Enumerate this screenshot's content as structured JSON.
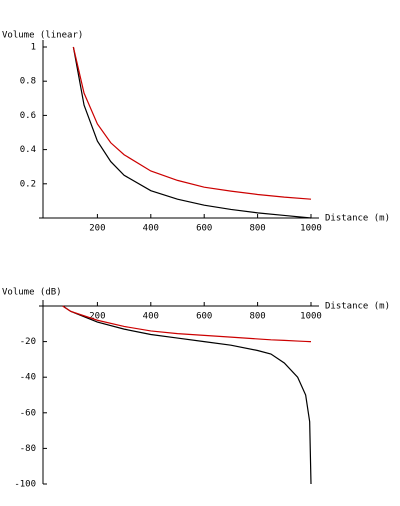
{
  "chart_data": [
    {
      "type": "line",
      "y_label": "Volume (linear)",
      "x_label": "Distance (m)",
      "x": [
        110,
        150,
        200,
        250,
        300,
        400,
        500,
        600,
        700,
        800,
        900,
        1000
      ],
      "series": [
        {
          "color": "#000000",
          "values": [
            1,
            0.66,
            0.45,
            0.33,
            0.25,
            0.16,
            0.11,
            0.075,
            0.05,
            0.03,
            0.015,
            0
          ]
        },
        {
          "color": "#cc0000",
          "values": [
            1,
            0.73,
            0.55,
            0.44,
            0.37,
            0.275,
            0.22,
            0.18,
            0.157,
            0.1375,
            0.122,
            0.11
          ]
        }
      ],
      "xlim": [
        0,
        1000
      ],
      "ylim": [
        0,
        1
      ],
      "xticks": [
        200,
        400,
        600,
        800,
        1000
      ],
      "yticks": [
        0.2,
        0.4,
        0.6,
        0.8,
        1
      ]
    },
    {
      "type": "line",
      "y_label": "Volume (dB)",
      "x_label": "Distance (m)",
      "x": [
        70,
        100,
        200,
        300,
        400,
        500,
        600,
        700,
        800,
        850,
        900,
        950,
        980,
        995,
        1000
      ],
      "series": [
        {
          "color": "#000000",
          "values": [
            0,
            -3,
            -9,
            -13,
            -16,
            -18,
            -20,
            -22,
            -25,
            -27,
            -32,
            -40,
            -50,
            -65,
            -100
          ]
        },
        {
          "color": "#cc0000",
          "values": [
            0,
            -3,
            -8,
            -11.5,
            -14,
            -15.5,
            -16.5,
            -17.5,
            -18.5,
            -19,
            -19.3,
            -19.7,
            -19.9,
            -20,
            -20
          ]
        }
      ],
      "xlim": [
        0,
        1000
      ],
      "ylim": [
        -100,
        0
      ],
      "xticks": [
        200,
        400,
        600,
        800,
        1000
      ],
      "yticks": [
        -20,
        -40,
        -60,
        -80,
        -100
      ]
    }
  ]
}
